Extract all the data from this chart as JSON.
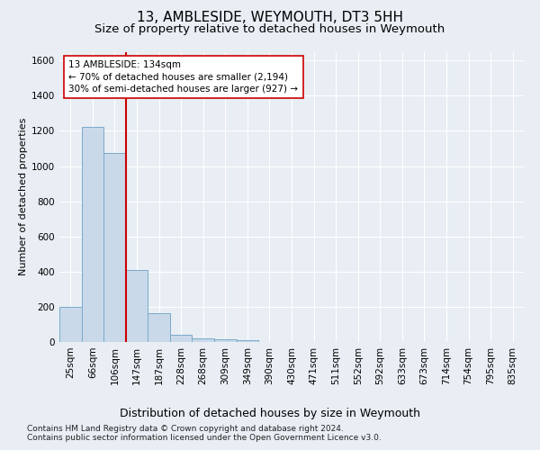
{
  "title": "13, AMBLESIDE, WEYMOUTH, DT3 5HH",
  "subtitle": "Size of property relative to detached houses in Weymouth",
  "xlabel": "Distribution of detached houses by size in Weymouth",
  "ylabel": "Number of detached properties",
  "footnote1": "Contains HM Land Registry data © Crown copyright and database right 2024.",
  "footnote2": "Contains public sector information licensed under the Open Government Licence v3.0.",
  "bar_color": "#c9d9ea",
  "bar_edge_color": "#7aaac8",
  "vline_color": "#cc0000",
  "annotation_line1": "13 AMBLESIDE: 134sqm",
  "annotation_line2": "← 70% of detached houses are smaller (2,194)",
  "annotation_line3": "30% of semi-detached houses are larger (927) →",
  "annotation_box_color": "#ffffff",
  "annotation_box_edge": "#cc0000",
  "background_color": "#e8eef4",
  "plot_background": "#e8eef4",
  "categories": [
    "25sqm",
    "66sqm",
    "106sqm",
    "147sqm",
    "187sqm",
    "228sqm",
    "268sqm",
    "309sqm",
    "349sqm",
    "390sqm",
    "430sqm",
    "471sqm",
    "511sqm",
    "552sqm",
    "592sqm",
    "633sqm",
    "673sqm",
    "714sqm",
    "754sqm",
    "795sqm",
    "835sqm"
  ],
  "values": [
    200,
    1225,
    1075,
    410,
    165,
    40,
    20,
    15,
    10,
    0,
    0,
    0,
    0,
    0,
    0,
    0,
    0,
    0,
    0,
    0,
    0
  ],
  "ylim": [
    0,
    1650
  ],
  "yticks": [
    0,
    200,
    400,
    600,
    800,
    1000,
    1200,
    1400,
    1600
  ],
  "grid_color": "#ffffff",
  "title_fontsize": 11,
  "subtitle_fontsize": 9.5,
  "xlabel_fontsize": 9,
  "ylabel_fontsize": 8,
  "tick_fontsize": 7.5,
  "annotation_fontsize": 7.5,
  "footnote_fontsize": 6.5,
  "vline_pos": 2.5
}
